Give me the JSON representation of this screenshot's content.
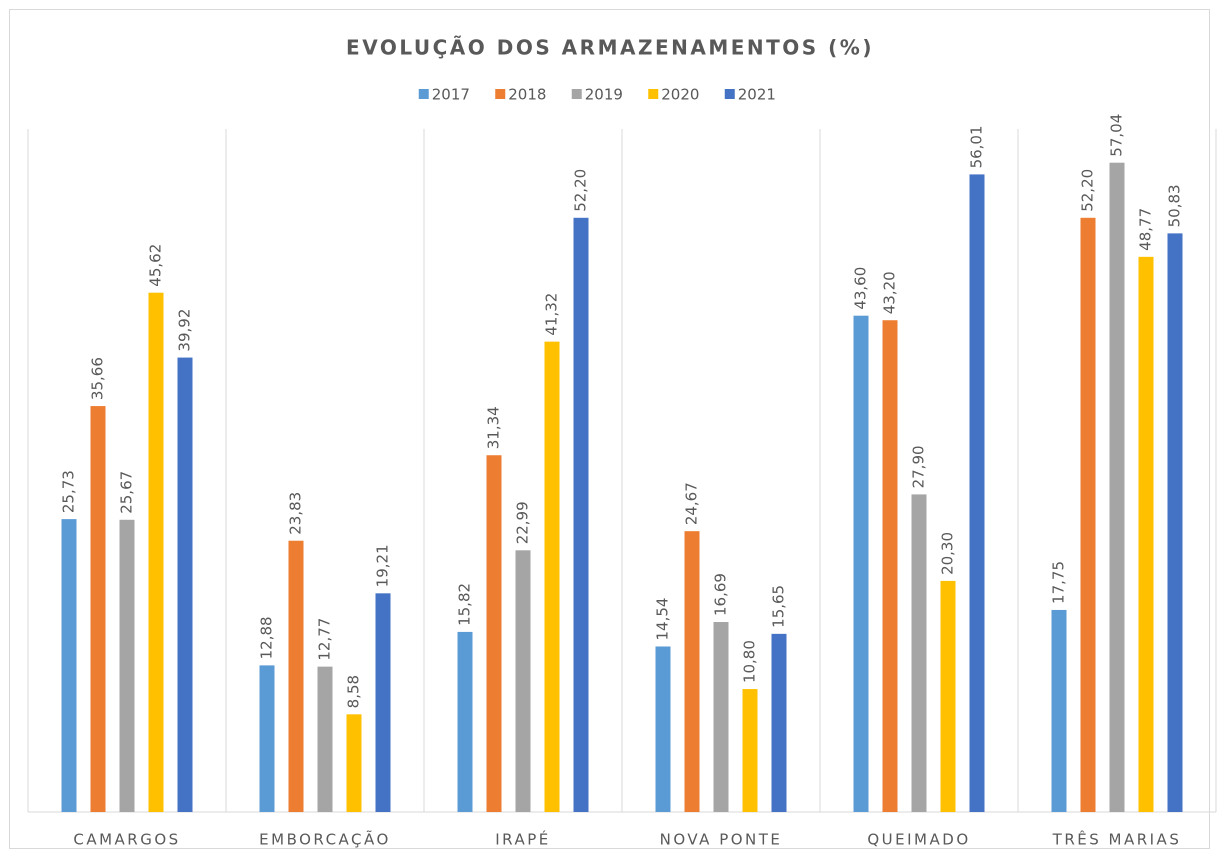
{
  "chart_data": {
    "type": "bar",
    "title": "EVOLUÇÃO DOS ARMAZENAMENTOS (%)",
    "categories": [
      "CAMARGOS",
      "EMBORCAÇÃO",
      "IRAPÉ",
      "NOVA PONTE",
      "QUEIMADO",
      "TRÊS MARIAS"
    ],
    "ylim": [
      0,
      60
    ],
    "legend": "top",
    "series": [
      {
        "name": "2017",
        "color": "#5b9bd5",
        "values": [
          25.73,
          12.88,
          15.82,
          14.54,
          43.6,
          17.75
        ],
        "value_labels": [
          "25,73",
          "12,88",
          "15,82",
          "14,54",
          "43,60",
          "17,75"
        ]
      },
      {
        "name": "2018",
        "color": "#ed7d31",
        "values": [
          35.66,
          23.83,
          31.34,
          24.67,
          43.2,
          52.2
        ],
        "value_labels": [
          "35,66",
          "23,83",
          "31,34",
          "24,67",
          "43,20",
          "52,20"
        ]
      },
      {
        "name": "2019",
        "color": "#a5a5a5",
        "values": [
          25.67,
          12.77,
          22.99,
          16.69,
          27.9,
          57.04
        ],
        "value_labels": [
          "25,67",
          "12,77",
          "22,99",
          "16,69",
          "27,90",
          "57,04"
        ]
      },
      {
        "name": "2020",
        "color": "#ffc000",
        "values": [
          45.62,
          8.58,
          41.32,
          10.8,
          20.3,
          48.77
        ],
        "value_labels": [
          "45,62",
          "8,58",
          "41,32",
          "10,80",
          "20,30",
          "48,77"
        ]
      },
      {
        "name": "2021",
        "color": "#4472c4",
        "values": [
          39.92,
          19.21,
          52.2,
          15.65,
          56.01,
          50.83
        ],
        "value_labels": [
          "39,92",
          "19,21",
          "52,20",
          "15,65",
          "56,01",
          "50,83"
        ]
      }
    ]
  }
}
